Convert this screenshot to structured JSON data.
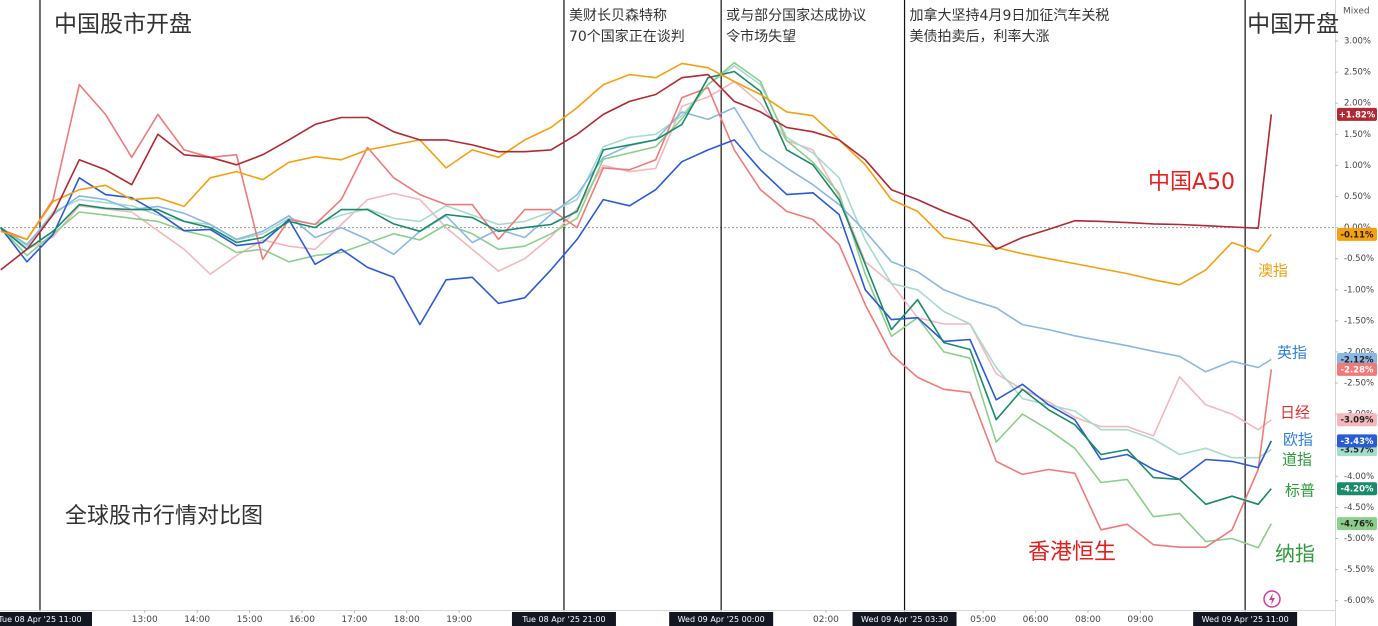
{
  "chart_data": {
    "type": "line",
    "subtitle": "全球股市行情对比图",
    "scale_mode": "Mixed",
    "x": [
      -0.75,
      -0.25,
      0.25,
      0.75,
      1.25,
      1.75,
      2.25,
      2.75,
      3.25,
      3.75,
      4.25,
      4.75,
      5.25,
      5.75,
      6.25,
      6.75,
      7.25,
      7.75,
      8.25,
      8.75,
      9.25,
      9.75,
      10.25,
      10.75,
      11.25,
      11.75,
      12.25,
      12.75,
      13.25,
      13.75,
      14.25,
      14.75,
      15.25,
      15.75,
      16.25,
      16.75,
      17.25,
      17.75,
      18.25,
      18.75,
      19.25,
      19.75,
      20.25,
      20.75,
      21.25,
      21.75,
      22.25,
      22.75,
      23.25,
      23.5
    ],
    "xlim": [
      -0.763,
      24.715
    ],
    "xticks": [
      {
        "value": 0,
        "label": "Tue 08 Apr '25  11:00"
      },
      {
        "value": 2,
        "label": "13:00"
      },
      {
        "value": 3,
        "label": "14:00"
      },
      {
        "value": 4,
        "label": "15:00"
      },
      {
        "value": 5,
        "label": "16:00"
      },
      {
        "value": 6,
        "label": "17:00"
      },
      {
        "value": 7,
        "label": "18:00"
      },
      {
        "value": 8,
        "label": "19:00"
      },
      {
        "value": 10,
        "label": "Tue 08 Apr '25  21:00"
      },
      {
        "value": 13,
        "label": "Wed 09 Apr '25  00:00"
      },
      {
        "value": 15,
        "label": "02:00"
      },
      {
        "value": 16.5,
        "label": "Wed 09 Apr '25  03:30"
      },
      {
        "value": 18,
        "label": "05:00"
      },
      {
        "value": 19,
        "label": "06:00"
      },
      {
        "value": 20,
        "label": "08:00"
      },
      {
        "value": 21,
        "label": "09:00"
      },
      {
        "value": 23,
        "label": "Wed 09 Apr '25  11:00"
      }
    ],
    "ylim": [
      -6.15,
      3.66
    ],
    "yticks": [
      {
        "value": 3,
        "label": "3.00%"
      },
      {
        "value": 2.5,
        "label": "2.50%"
      },
      {
        "value": 2,
        "label": "2.00%"
      },
      {
        "value": 1.5,
        "label": "1.50%"
      },
      {
        "value": 1,
        "label": "1.00%"
      },
      {
        "value": 0.5,
        "label": "0.50%"
      },
      {
        "value": 0,
        "label": "0.00%"
      },
      {
        "value": -0.5,
        "label": "-0.50%"
      },
      {
        "value": -1,
        "label": "-1.00%"
      },
      {
        "value": -1.5,
        "label": "-1.50%"
      },
      {
        "value": -2,
        "label": "-2.00%"
      },
      {
        "value": -2.5,
        "label": "-2.50%"
      },
      {
        "value": -3,
        "label": "-3.00%"
      },
      {
        "value": -3.5,
        "label": "-3.50%"
      },
      {
        "value": -4,
        "label": "-4.00%"
      },
      {
        "value": -4.5,
        "label": "-4.50%"
      },
      {
        "value": -5,
        "label": "-5.00%"
      },
      {
        "value": -5.5,
        "label": "-5.50%"
      },
      {
        "value": -6,
        "label": "-6.00%"
      }
    ],
    "grid": false,
    "reference_line": 0,
    "annotations": [
      {
        "x": 0,
        "lines": [
          "中国股市开盘"
        ]
      },
      {
        "x": 10,
        "lines": [
          "美财长贝森特称",
          "70个国家正在谈判"
        ]
      },
      {
        "x": 13,
        "lines": [
          "或与部分国家达成协议",
          "令市场失望"
        ]
      },
      {
        "x": 16.5,
        "lines": [
          "加拿大坚持4月9日加征汽车关税",
          "美债拍卖后，利率大涨"
        ]
      },
      {
        "x": 23,
        "lines": [
          "中国开盘"
        ]
      }
    ],
    "series": [
      {
        "name": "日经",
        "color": "#f4b8bc",
        "label_color": "#e03030",
        "end_label": "-3.09%",
        "values": [
          0.0,
          -0.35,
          -0.15,
          0.35,
          0.3,
          0.25,
          -0.05,
          -0.35,
          -0.75,
          -0.45,
          -0.2,
          -0.3,
          -0.35,
          0.05,
          0.45,
          0.55,
          0.45,
          0.0,
          -0.35,
          -0.7,
          -0.5,
          -0.15,
          0.3,
          1.0,
          0.9,
          0.95,
          1.95,
          2.1,
          2.35,
          2.0,
          1.4,
          1.25,
          0.5,
          -0.55,
          -0.9,
          -1.45,
          -1.55,
          -1.55,
          -2.35,
          -2.6,
          -2.8,
          -3.05,
          -3.2,
          -3.2,
          -3.35,
          -2.4,
          -2.85,
          -3.0,
          -3.25,
          -3.09
        ]
      },
      {
        "name": "道指",
        "color": "#a6dccc",
        "label_color": "#2e9a3a",
        "end_label": "-3.57%",
        "values": [
          0.0,
          -0.3,
          0.25,
          0.45,
          0.4,
          0.35,
          0.2,
          0.1,
          0.05,
          -0.2,
          -0.1,
          0.15,
          0.05,
          0.2,
          0.3,
          0.15,
          0.1,
          0.35,
          0.2,
          0.05,
          0.1,
          0.25,
          0.45,
          1.3,
          1.45,
          1.5,
          1.8,
          2.3,
          2.6,
          2.3,
          1.45,
          1.2,
          0.8,
          -0.2,
          -0.9,
          -1.0,
          -1.35,
          -1.55,
          -2.25,
          -2.75,
          -2.85,
          -2.95,
          -3.25,
          -3.25,
          -3.4,
          -3.65,
          -3.55,
          -3.7,
          -3.7,
          -3.57
        ]
      },
      {
        "name": "纳指",
        "color": "#8bcf8b",
        "label_color": "#2e9a3a",
        "end_label": "-4.76%",
        "values": [
          0.0,
          -0.45,
          -0.1,
          0.25,
          0.2,
          0.15,
          0.1,
          -0.05,
          -0.15,
          -0.4,
          -0.35,
          -0.55,
          -0.45,
          -0.4,
          -0.25,
          -0.1,
          -0.2,
          0.05,
          -0.1,
          -0.35,
          -0.3,
          -0.1,
          0.15,
          1.1,
          1.2,
          1.3,
          1.75,
          2.3,
          2.65,
          2.35,
          1.4,
          1.05,
          0.55,
          -0.75,
          -1.75,
          -1.45,
          -2.0,
          -2.1,
          -3.45,
          -3.0,
          -3.25,
          -3.55,
          -4.1,
          -4.05,
          -4.65,
          -4.6,
          -5.05,
          -5.0,
          -5.15,
          -4.76
        ]
      },
      {
        "name": "英指",
        "color": "#8ab8e6",
        "label_color": "#2f7fd8",
        "end_label": "-2.12%",
        "values": [
          0.0,
          -0.27,
          0.21,
          0.51,
          0.45,
          0.29,
          0.34,
          0.23,
          0.05,
          -0.19,
          -0.06,
          0.19,
          -0.16,
          0.0,
          -0.19,
          -0.43,
          -0.06,
          0.19,
          -0.24,
          -0.03,
          -0.16,
          0.21,
          0.53,
          1.13,
          1.32,
          1.41,
          1.86,
          1.74,
          1.93,
          1.25,
          0.96,
          0.69,
          0.37,
          -0.06,
          -0.55,
          -0.71,
          -1.0,
          -1.16,
          -1.29,
          -1.56,
          -1.64,
          -1.74,
          -1.82,
          -1.9,
          -1.99,
          -2.07,
          -2.32,
          -2.15,
          -2.25,
          -2.12
        ]
      },
      {
        "name": "香港恒生",
        "color": "#f07a7a",
        "label_color": "#e32020",
        "end_label": "-2.28%",
        "values": [
          -0.03,
          -0.19,
          0.45,
          2.3,
          1.82,
          1.13,
          1.82,
          1.25,
          1.13,
          1.17,
          -0.51,
          0.13,
          0.05,
          0.45,
          1.29,
          0.8,
          0.53,
          0.37,
          0.37,
          -0.19,
          0.29,
          0.29,
          0.0,
          0.96,
          0.93,
          1.09,
          2.09,
          2.25,
          1.25,
          0.61,
          0.26,
          0.13,
          -0.27,
          -1.24,
          -2.04,
          -2.41,
          -2.6,
          -2.65,
          -3.76,
          -3.97,
          -3.89,
          -3.95,
          -4.86,
          -4.77,
          -5.1,
          -5.14,
          -5.14,
          -4.86,
          -3.89,
          -2.28
        ]
      },
      {
        "name": "欧指",
        "color": "#2a5bd7",
        "label_color": "#2f7fd8",
        "end_label": "-3.43%",
        "values": [
          0.0,
          -0.55,
          -0.11,
          0.8,
          0.53,
          0.48,
          0.24,
          -0.05,
          -0.03,
          -0.29,
          -0.24,
          0.13,
          -0.59,
          -0.35,
          -0.64,
          -0.8,
          -1.56,
          -0.84,
          -0.8,
          -1.22,
          -1.13,
          -0.68,
          -0.19,
          0.45,
          0.35,
          0.61,
          1.06,
          1.25,
          1.41,
          0.93,
          0.53,
          0.56,
          0.21,
          -1.0,
          -1.48,
          -1.45,
          -1.83,
          -1.8,
          -2.77,
          -2.52,
          -2.85,
          -3.09,
          -3.73,
          -3.65,
          -3.89,
          -4.05,
          -3.73,
          -3.76,
          -3.86,
          -3.43
        ]
      },
      {
        "name": "标普",
        "color": "#1a8a6a",
        "label_color": "#2e9a3a",
        "end_label": "-4.20%",
        "values": [
          0.0,
          -0.35,
          -0.06,
          0.37,
          0.31,
          0.29,
          0.29,
          0.1,
          0.0,
          -0.24,
          -0.16,
          0.1,
          0.0,
          0.29,
          0.29,
          0.06,
          -0.06,
          0.21,
          0.16,
          -0.06,
          0.0,
          0.05,
          0.26,
          1.25,
          1.33,
          1.41,
          1.66,
          2.41,
          2.51,
          2.19,
          1.25,
          1.01,
          0.45,
          -0.59,
          -1.64,
          -1.16,
          -1.85,
          -1.96,
          -3.09,
          -2.6,
          -2.93,
          -3.17,
          -3.65,
          -3.57,
          -4.02,
          -4.05,
          -4.45,
          -4.32,
          -4.45,
          -4.2
        ]
      },
      {
        "name": "澳指",
        "color": "#f5a00f",
        "label_color": "#f0a010",
        "end_label": "-0.11%",
        "values": [
          -0.06,
          -0.19,
          0.42,
          0.61,
          0.68,
          0.45,
          0.48,
          0.34,
          0.8,
          0.9,
          0.77,
          1.05,
          1.14,
          1.09,
          1.25,
          1.33,
          1.41,
          0.96,
          1.25,
          1.13,
          1.41,
          1.61,
          1.93,
          2.3,
          2.46,
          2.41,
          2.64,
          2.57,
          2.35,
          2.14,
          1.86,
          1.8,
          1.41,
          1.01,
          0.45,
          0.26,
          -0.16,
          -0.24,
          -0.32,
          -0.42,
          -0.5,
          -0.58,
          -0.66,
          -0.74,
          -0.84,
          -0.92,
          -0.68,
          -0.24,
          -0.39,
          -0.11
        ]
      },
      {
        "name": "中国A50",
        "color": "#b22833",
        "label_color": "#e32020",
        "end_label": "+1.82%",
        "values": [
          -0.68,
          -0.35,
          0.21,
          1.09,
          0.93,
          0.69,
          1.5,
          1.17,
          1.13,
          1.01,
          1.17,
          1.41,
          1.66,
          1.77,
          1.77,
          1.54,
          1.41,
          1.41,
          1.33,
          1.22,
          1.22,
          1.25,
          1.5,
          1.82,
          2.03,
          2.14,
          2.41,
          2.46,
          2.03,
          1.86,
          1.61,
          1.54,
          1.41,
          1.09,
          0.61,
          0.45,
          0.26,
          0.1,
          -0.35,
          -0.16,
          -0.03,
          0.11,
          0.1,
          0.08,
          0.06,
          0.05,
          0.03,
          0.01,
          -0.01,
          1.82
        ]
      }
    ]
  }
}
